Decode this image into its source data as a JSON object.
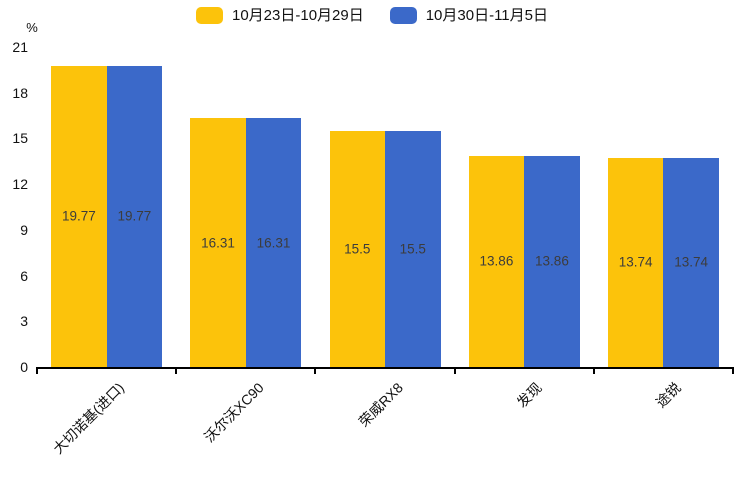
{
  "chart_data": {
    "type": "bar",
    "title": "",
    "categories": [
      "大切诺基(进口)",
      "沃尔沃XC90",
      "荣威RX8",
      "发现",
      "途锐"
    ],
    "series": [
      {
        "name": "10月23日-10月29日",
        "color": "#FCC30B",
        "values": [
          19.77,
          16.31,
          15.5,
          13.86,
          13.74
        ]
      },
      {
        "name": "10月30日-11月5日",
        "color": "#3B69C9",
        "values": [
          19.77,
          16.31,
          15.5,
          13.86,
          13.74
        ]
      }
    ],
    "value_labels": [
      "19.77",
      "16.31",
      "15.5",
      "13.86",
      "13.74"
    ],
    "xlabel": "",
    "ylabel": "%",
    "yticks": [
      0,
      3,
      6,
      9,
      12,
      15,
      18,
      21
    ],
    "ylim": [
      0,
      21
    ],
    "grid": false,
    "legend_position": "top",
    "axis_color": "#000000",
    "tick_label_color": "#111111",
    "value_label_color": "#3c3c3c"
  }
}
